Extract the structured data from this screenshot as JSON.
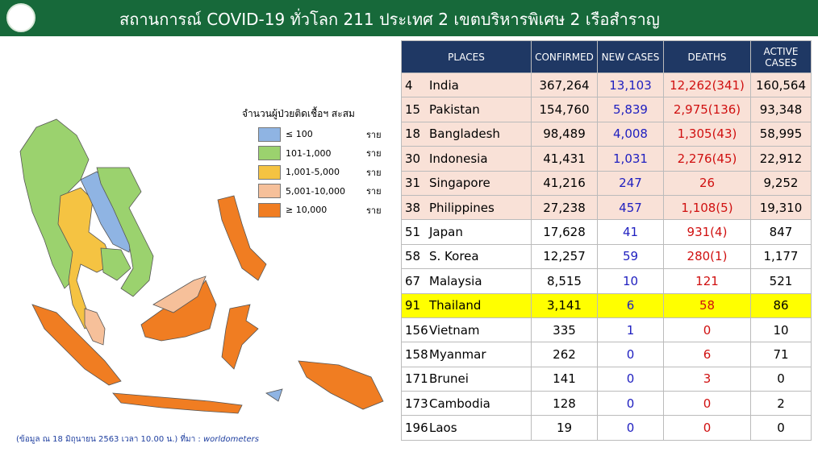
{
  "header": {
    "title": "สถานการณ์ COVID-19 ทั่วโลก 211 ประเทศ 2 เขตบริหารพิเศษ 2 เรือสำราญ"
  },
  "legend": {
    "title": "จำนวนผู้ป่วยติดเชื้อฯ สะสม",
    "items": [
      {
        "range": "≤ 100",
        "unit": "ราย",
        "color": "#8fb4e3"
      },
      {
        "range": "101-1,000",
        "unit": "ราย",
        "color": "#9bd26e"
      },
      {
        "range": "1,001-5,000",
        "unit": "ราย",
        "color": "#f5c342"
      },
      {
        "range": "5,001-10,000",
        "unit": "ราย",
        "color": "#f6c09a"
      },
      {
        "range": "≥ 10,000",
        "unit": "ราย",
        "color": "#f07d22"
      }
    ]
  },
  "source": {
    "note": "(ข้อมูล ณ 18 มิถุนายน 2563 เวลา 10.00 น.) ที่มา :",
    "site": "worldometers"
  },
  "table": {
    "columns": [
      "PLACES",
      "CONFIRMED",
      "NEW CASES",
      "DEATHS",
      "ACTIVE CASES"
    ],
    "rows": [
      {
        "rank": "4",
        "place": "India",
        "confirmed": "367,264",
        "new": "13,103",
        "deaths": "12,262(341)",
        "active": "160,564",
        "color": "#f9e1d7"
      },
      {
        "rank": "15",
        "place": "Pakistan",
        "confirmed": "154,760",
        "new": "5,839",
        "deaths": "2,975(136)",
        "active": "93,348",
        "color": "#f9e1d7"
      },
      {
        "rank": "18",
        "place": "Bangladesh",
        "confirmed": "98,489",
        "new": "4,008",
        "deaths": "1,305(43)",
        "active": "58,995",
        "color": "#f9e1d7"
      },
      {
        "rank": "30",
        "place": "Indonesia",
        "confirmed": "41,431",
        "new": "1,031",
        "deaths": "2,276(45)",
        "active": "22,912",
        "color": "#f9e1d7"
      },
      {
        "rank": "31",
        "place": "Singapore",
        "confirmed": "41,216",
        "new": "247",
        "deaths": "26",
        "active": "9,252",
        "color": "#f9e1d7"
      },
      {
        "rank": "38",
        "place": "Philippines",
        "confirmed": "27,238",
        "new": "457",
        "deaths": "1,108(5)",
        "active": "19,310",
        "color": "#f9e1d7"
      },
      {
        "rank": "51",
        "place": "Japan",
        "confirmed": "17,628",
        "new": "41",
        "deaths": "931(4)",
        "active": "847",
        "color": "#ffffff"
      },
      {
        "rank": "58",
        "place": "S. Korea",
        "confirmed": "12,257",
        "new": "59",
        "deaths": "280(1)",
        "active": "1,177",
        "color": "#ffffff"
      },
      {
        "rank": "67",
        "place": "Malaysia",
        "confirmed": "8,515",
        "new": "10",
        "deaths": "121",
        "active": "521",
        "color": "#ffffff"
      },
      {
        "rank": "91",
        "place": "Thailand",
        "confirmed": "3,141",
        "new": "6",
        "deaths": "58",
        "active": "86",
        "color": "#ffff00"
      },
      {
        "rank": "156",
        "place": "Vietnam",
        "confirmed": "335",
        "new": "1",
        "deaths": "0",
        "active": "10",
        "color": "#ffffff"
      },
      {
        "rank": "158",
        "place": "Myanmar",
        "confirmed": "262",
        "new": "0",
        "deaths": "6",
        "active": "71",
        "color": "#ffffff"
      },
      {
        "rank": "171",
        "place": "Brunei",
        "confirmed": "141",
        "new": "0",
        "deaths": "3",
        "active": "0",
        "color": "#ffffff"
      },
      {
        "rank": "173",
        "place": "Cambodia",
        "confirmed": "128",
        "new": "0",
        "deaths": "0",
        "active": "2",
        "color": "#ffffff"
      },
      {
        "rank": "196",
        "place": "Laos",
        "confirmed": "19",
        "new": "0",
        "deaths": "0",
        "active": "0",
        "color": "#ffffff"
      }
    ]
  }
}
